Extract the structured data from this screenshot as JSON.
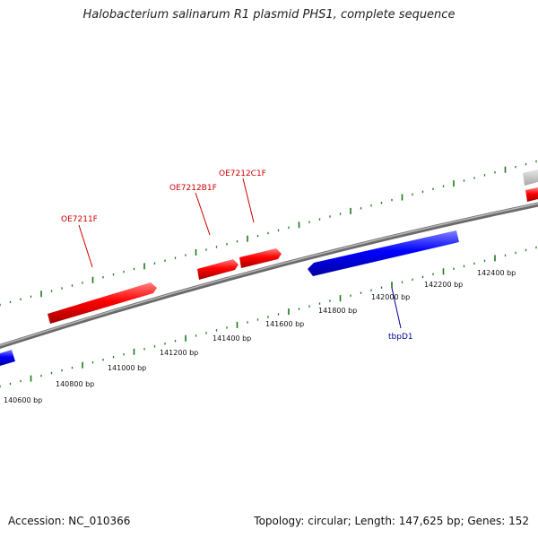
{
  "title": "Halobacterium salinarum R1 plasmid PHS1, complete sequence",
  "accession": "Accession: NC_010366",
  "topology": "Topology: circular; Length: 147,625 bp; Genes: 152",
  "colors": {
    "forward_gene": "#ff0000",
    "reverse_gene": "#0000ff",
    "backbone": "#808080",
    "ticks": "#1a7a1a",
    "forward_label": "#cc0000",
    "reverse_label": "#000099"
  },
  "bp_labels": [
    "140600 bp",
    "140800 bp",
    "141000 bp",
    "141200 bp",
    "141400 bp",
    "141600 bp",
    "141800 bp",
    "142000 bp",
    "142200 bp",
    "142400 bp"
  ],
  "genes": [
    {
      "name": "OE7211F",
      "strand": "forward"
    },
    {
      "name": "OE7212B1F",
      "strand": "forward"
    },
    {
      "name": "OE7212C1F",
      "strand": "forward"
    },
    {
      "name": "tbpD1",
      "strand": "reverse"
    }
  ]
}
